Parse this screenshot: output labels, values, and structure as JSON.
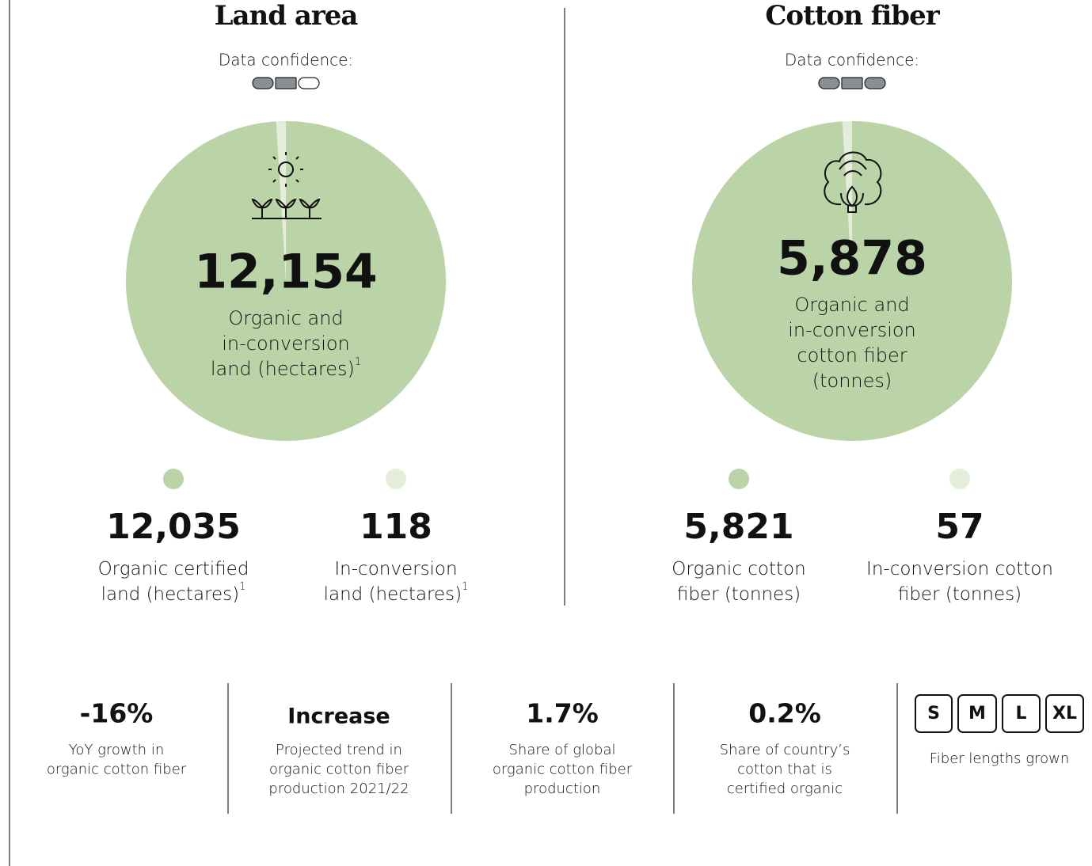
{
  "panels": [
    {
      "title": "Land area",
      "confidence_label": "Data confidence:",
      "confidence": 2,
      "total": {
        "value": 12154,
        "label": "12,154",
        "caption": [
          "Organic and",
          "in-conversion",
          "land (hectares)"
        ],
        "footnote": "1"
      },
      "parts": [
        {
          "value": 12035,
          "label": "12,035",
          "caption": [
            "Organic certified",
            "land (hectares)"
          ],
          "footnote": "1",
          "color": "#bad4a8"
        },
        {
          "value": 118,
          "label": "118",
          "caption": [
            "In-conversion",
            "land (hectares)"
          ],
          "footnote": "1",
          "color": "#e3edda"
        }
      ]
    },
    {
      "title": "Cotton fiber",
      "confidence_label": "Data confidence:",
      "confidence": 3,
      "total": {
        "value": 5878,
        "label": "5,878",
        "caption": [
          "Organic and",
          "in-conversion",
          "cotton fiber",
          "(tonnes)"
        ]
      },
      "parts": [
        {
          "value": 5821,
          "label": "5,821",
          "caption": [
            "Organic cotton",
            "fiber (tonnes)"
          ],
          "color": "#bad4a8"
        },
        {
          "value": 57,
          "label": "57",
          "caption": [
            "In-conversion cotton",
            "fiber (tonnes)"
          ],
          "color": "#e3edda"
        }
      ]
    }
  ],
  "stats": [
    {
      "value": "-16%",
      "caption": [
        "YoY growth in",
        "organic cotton fiber"
      ]
    },
    {
      "value": "Increase",
      "caption": [
        "Projected trend in",
        "organic cotton fiber",
        "production 2021/22"
      ]
    },
    {
      "value": "1.7%",
      "caption": [
        "Share of global",
        "organic cotton fiber",
        "production"
      ]
    },
    {
      "value": "0.2%",
      "caption": [
        "Share of country’s",
        "cotton that is",
        "certified organic"
      ]
    }
  ],
  "fiber_lengths": {
    "items": [
      "S",
      "M",
      "L",
      "XL"
    ],
    "caption": "Fiber lengths grown"
  }
}
